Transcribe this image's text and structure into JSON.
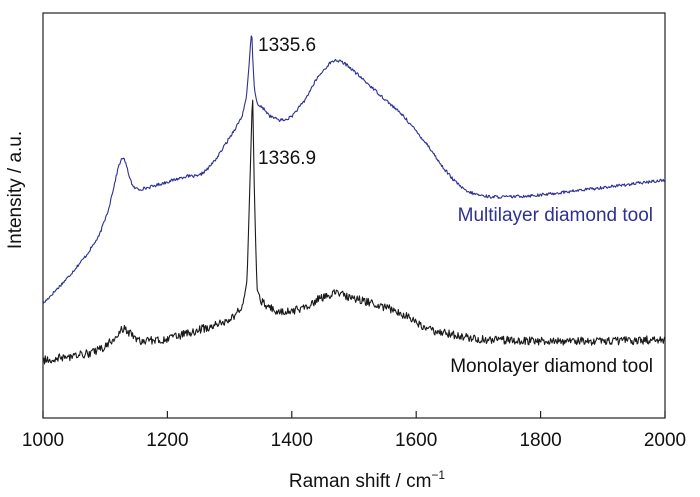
{
  "chart_data": {
    "type": "line",
    "xlabel_main": "Raman shift / cm",
    "xlabel_sup": "−1",
    "ylabel": "Intensity / a.u.",
    "xlim": [
      1000,
      2000
    ],
    "xticks": [
      1000,
      1200,
      1400,
      1600,
      1800,
      2000
    ],
    "y_ticks_shown": false,
    "grid": false,
    "peak_annotations": [
      {
        "text": "1335.6",
        "x": 1335.6,
        "series": "Multilayer diamond tool"
      },
      {
        "text": "1336.9",
        "x": 1336.9,
        "series": "Monolayer diamond tool"
      }
    ],
    "series": [
      {
        "name": "Multilayer diamond tool",
        "color": "#2e3192",
        "x": [
          1000,
          1040,
          1070,
          1090,
          1105,
          1115,
          1122,
          1128,
          1132,
          1137,
          1145,
          1155,
          1170,
          1190,
          1210,
          1230,
          1250,
          1265,
          1280,
          1295,
          1310,
          1320,
          1327,
          1331,
          1334,
          1335.6,
          1337,
          1340,
          1345,
          1355,
          1365,
          1380,
          1390,
          1400,
          1420,
          1440,
          1460,
          1470,
          1480,
          1490,
          1500,
          1520,
          1540,
          1560,
          1580,
          1600,
          1620,
          1640,
          1660,
          1680,
          1700,
          1720,
          1750,
          1800,
          1850,
          1900,
          1950,
          2000
        ],
        "values": [
          0.27,
          0.34,
          0.4,
          0.45,
          0.52,
          0.59,
          0.64,
          0.66,
          0.65,
          0.62,
          0.58,
          0.575,
          0.58,
          0.59,
          0.6,
          0.61,
          0.61,
          0.63,
          0.66,
          0.7,
          0.74,
          0.77,
          0.82,
          0.9,
          0.97,
          1.0,
          0.93,
          0.84,
          0.8,
          0.79,
          0.77,
          0.76,
          0.76,
          0.77,
          0.81,
          0.87,
          0.91,
          0.92,
          0.915,
          0.905,
          0.89,
          0.86,
          0.83,
          0.8,
          0.77,
          0.73,
          0.69,
          0.64,
          0.6,
          0.57,
          0.56,
          0.555,
          0.555,
          0.56,
          0.57,
          0.58,
          0.59,
          0.6
        ]
      },
      {
        "name": "Monolayer diamond tool",
        "color": "#1a1a1a",
        "x": [
          1000,
          1050,
          1080,
          1100,
          1115,
          1125,
          1130,
          1135,
          1145,
          1160,
          1200,
          1250,
          1290,
          1310,
          1322,
          1328,
          1332,
          1336.9,
          1340,
          1344,
          1350,
          1360,
          1380,
          1400,
          1420,
          1440,
          1460,
          1470,
          1480,
          1500,
          1520,
          1540,
          1560,
          1580,
          1600,
          1620,
          1650,
          1700,
          1800,
          1900,
          2000
        ],
        "values": [
          0.12,
          0.13,
          0.14,
          0.155,
          0.18,
          0.2,
          0.205,
          0.2,
          0.18,
          0.17,
          0.175,
          0.2,
          0.22,
          0.24,
          0.27,
          0.33,
          0.55,
          0.84,
          0.55,
          0.31,
          0.28,
          0.26,
          0.25,
          0.25,
          0.26,
          0.28,
          0.295,
          0.3,
          0.295,
          0.285,
          0.275,
          0.265,
          0.255,
          0.24,
          0.22,
          0.2,
          0.19,
          0.175,
          0.17,
          0.17,
          0.175
        ]
      }
    ]
  }
}
